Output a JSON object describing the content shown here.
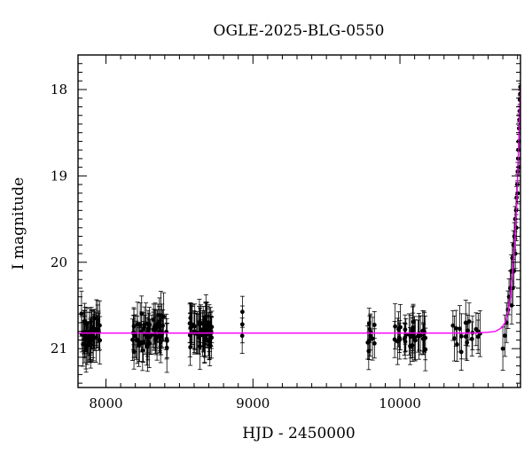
{
  "chart_data": {
    "type": "scatter",
    "title": "OGLE-2025-BLG-0550",
    "xlabel": "HJD - 2450000",
    "ylabel": "I magnitude",
    "xlim": [
      7810,
      10820
    ],
    "ylim": [
      21.45,
      17.6
    ],
    "y_inverted": true,
    "grid": false,
    "x_ticks": [
      8000,
      9000,
      10000
    ],
    "y_ticks": [
      18,
      19,
      20,
      21
    ],
    "colors": {
      "points": "#000000",
      "model": "#ff00ff"
    },
    "baseline_mag": 20.82,
    "model_curve": {
      "name": "",
      "points": [
        [
          7810,
          20.82
        ],
        [
          10500,
          20.82
        ],
        [
          10600,
          20.81
        ],
        [
          10650,
          20.8
        ],
        [
          10690,
          20.76
        ],
        [
          10715,
          20.7
        ],
        [
          10735,
          20.58
        ],
        [
          10750,
          20.42
        ],
        [
          10760,
          20.25
        ],
        [
          10770,
          20.05
        ],
        [
          10780,
          19.8
        ],
        [
          10788,
          19.55
        ],
        [
          10795,
          19.3
        ],
        [
          10800,
          19.05
        ],
        [
          10805,
          18.8
        ],
        [
          10810,
          18.5
        ],
        [
          10815,
          18.2
        ],
        [
          10820,
          17.95
        ]
      ]
    },
    "series": [
      {
        "name": "",
        "groups": [
          {
            "x_range": [
              7820,
              7960
            ],
            "n": 46,
            "y_center": 20.82,
            "y_spread": 0.3,
            "err": 0.23
          },
          {
            "x_range": [
              8180,
              8420
            ],
            "n": 62,
            "y_center": 20.82,
            "y_spread": 0.3,
            "err": 0.23
          },
          {
            "x_range": [
              8570,
              8720
            ],
            "n": 52,
            "y_center": 20.8,
            "y_spread": 0.28,
            "err": 0.22
          },
          {
            "x_range": [
              8910,
              8930
            ],
            "n": 3,
            "y_center": 20.8,
            "y_spread": 0.3,
            "err": 0.2
          },
          {
            "x_range": [
              9780,
              9830
            ],
            "n": 10,
            "y_center": 20.85,
            "y_spread": 0.25,
            "err": 0.2
          },
          {
            "x_range": [
              9950,
              10180
            ],
            "n": 34,
            "y_center": 20.85,
            "y_spread": 0.25,
            "err": 0.22
          },
          {
            "x_range": [
              10360,
              10560
            ],
            "n": 18,
            "y_center": 20.82,
            "y_spread": 0.25,
            "err": 0.22
          }
        ],
        "rising_points": [
          [
            10700,
            21.0
          ],
          [
            10715,
            20.85
          ],
          [
            10725,
            20.7
          ],
          [
            10735,
            20.55
          ],
          [
            10742,
            20.4
          ],
          [
            10750,
            20.3
          ],
          [
            10758,
            20.1
          ],
          [
            10765,
            19.95
          ],
          [
            10772,
            19.8
          ],
          [
            10778,
            19.7
          ],
          [
            10784,
            19.5
          ],
          [
            10790,
            19.4
          ],
          [
            10794,
            19.25
          ],
          [
            10798,
            19.1
          ],
          [
            10801,
            18.95
          ],
          [
            10804,
            18.8
          ],
          [
            10806,
            18.7
          ],
          [
            10808,
            18.6
          ],
          [
            10810,
            18.45
          ],
          [
            10812,
            18.35
          ],
          [
            10814,
            18.25
          ],
          [
            10816,
            18.12
          ],
          [
            10818,
            18.05
          ],
          [
            10819,
            17.97
          ],
          [
            10812,
            18.6
          ],
          [
            10808,
            18.9
          ],
          [
            10800,
            19.2
          ],
          [
            10792,
            19.6
          ],
          [
            10785,
            19.9
          ],
          [
            10776,
            20.1
          ],
          [
            10768,
            20.3
          ],
          [
            10760,
            20.5
          ]
        ]
      }
    ]
  }
}
